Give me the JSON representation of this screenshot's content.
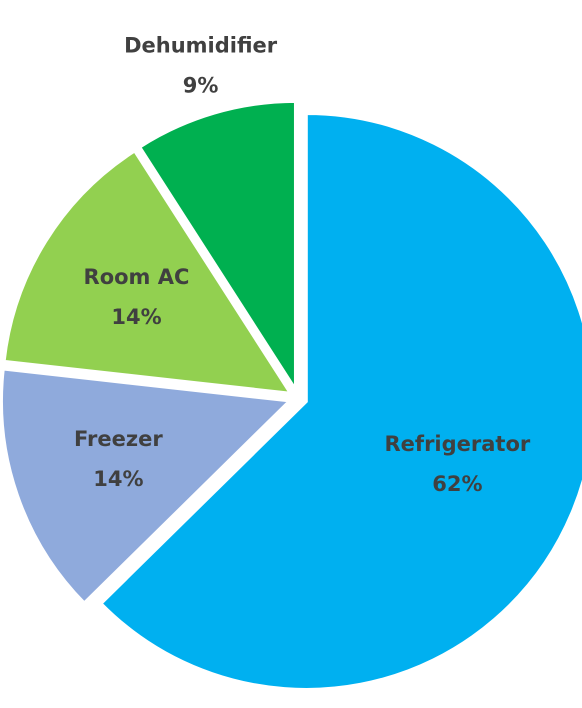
{
  "chart_data": {
    "type": "pie",
    "categories": [
      "Refrigerator",
      "Freezer",
      "Room AC",
      "Dehumidifier"
    ],
    "values": [
      62,
      14,
      14,
      9
    ],
    "value_labels": [
      "62%",
      "14%",
      "14%",
      "9%"
    ],
    "colors": [
      "#00b0f0",
      "#8faadc",
      "#92d050",
      "#00b050"
    ]
  }
}
